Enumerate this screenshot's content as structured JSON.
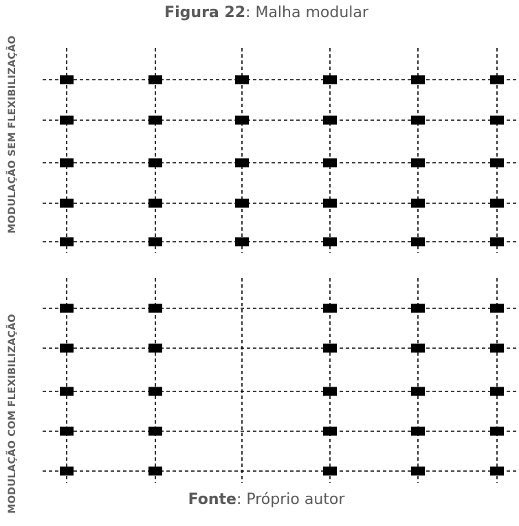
{
  "figure": {
    "label": "Figura 22",
    "separator": ":",
    "title": "Malha modular"
  },
  "source": {
    "label": "Fonte",
    "separator": ":",
    "text": "Próprio autor"
  },
  "panels": [
    {
      "label": "MODULAÇÃO SEM FLEXIBILIZAÇÃO",
      "columns": 6,
      "rows": 5,
      "missing_columns": []
    },
    {
      "label": "MODULAÇÃO COM FLEXIBILIZAÇÃO",
      "columns": 6,
      "rows": 5,
      "missing_columns": [
        2
      ]
    }
  ],
  "colors": {
    "line": "#000000",
    "node": "#000000",
    "text": "#5a5a5a"
  }
}
